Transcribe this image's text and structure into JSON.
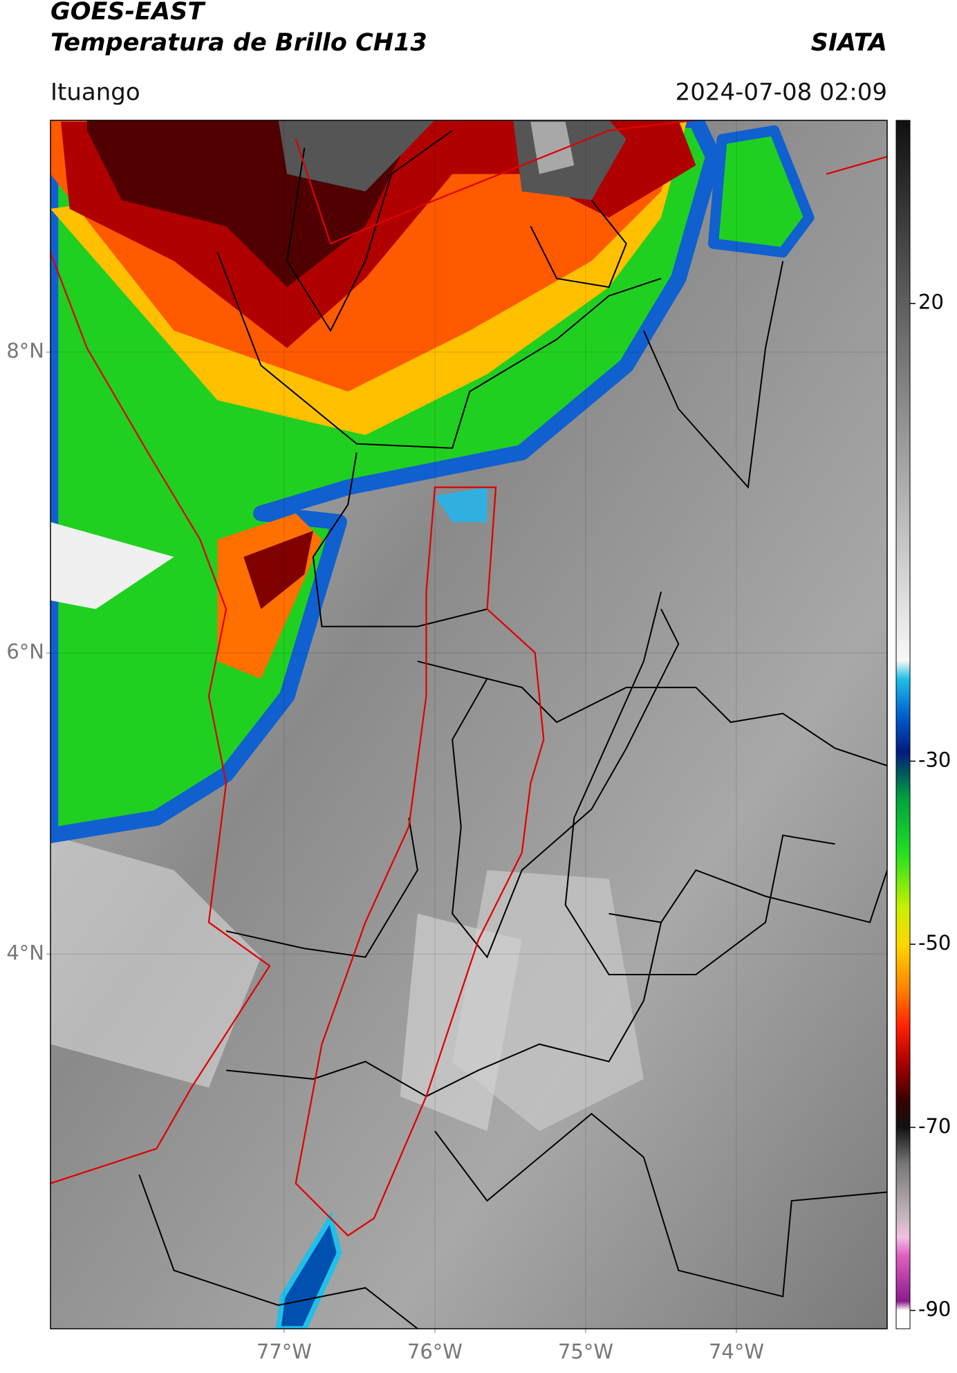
{
  "header": {
    "title_line1": "GOES-EAST",
    "title_line2": "Temperatura de Brillo CH13",
    "agency": "SIATA",
    "location": "Ituango",
    "datetime": "2024-07-08 02:09"
  },
  "map": {
    "lonlim": [
      -78.55,
      -73.0
    ],
    "latlim": [
      1.51,
      9.54
    ],
    "lonticks": [
      {
        "value": -77,
        "label": "77°W"
      },
      {
        "value": -76,
        "label": "76°W"
      },
      {
        "value": -75,
        "label": "75°W"
      },
      {
        "value": -74,
        "label": "74°W"
      }
    ],
    "latticks": [
      {
        "value": 8,
        "label": "8°N"
      },
      {
        "value": 6,
        "label": "6°N"
      },
      {
        "value": 4,
        "label": "4°N"
      }
    ],
    "grid": true
  },
  "colorbar": {
    "lim": [
      -92,
      40
    ],
    "ticks": [
      20,
      -30,
      -50,
      -70,
      -90
    ],
    "colormap": [
      {
        "value": 40,
        "color": "#101010"
      },
      {
        "value": -19,
        "color": "#f8f8f8"
      },
      {
        "value": -21,
        "color": "#20c0e8"
      },
      {
        "value": -25,
        "color": "#0060d0"
      },
      {
        "value": -29,
        "color": "#001a80"
      },
      {
        "value": -31,
        "color": "#005060"
      },
      {
        "value": -34,
        "color": "#00a040"
      },
      {
        "value": -40,
        "color": "#20e020"
      },
      {
        "value": -46,
        "color": "#c8f000"
      },
      {
        "value": -50,
        "color": "#ffd800"
      },
      {
        "value": -55,
        "color": "#ff8000"
      },
      {
        "value": -59,
        "color": "#ff2000"
      },
      {
        "value": -63,
        "color": "#aa0000"
      },
      {
        "value": -67,
        "color": "#3a0000"
      },
      {
        "value": -70,
        "color": "#111111"
      },
      {
        "value": -74,
        "color": "#777777"
      },
      {
        "value": -80,
        "color": "#c8b8c0"
      },
      {
        "value": -82,
        "color": "#f0c0e0"
      },
      {
        "value": -84,
        "color": "#e060c0"
      },
      {
        "value": -89,
        "color": "#8b1a8b"
      },
      {
        "value": -90,
        "color": "#ffffff"
      },
      {
        "value": -92,
        "color": "#ffffff"
      }
    ]
  }
}
